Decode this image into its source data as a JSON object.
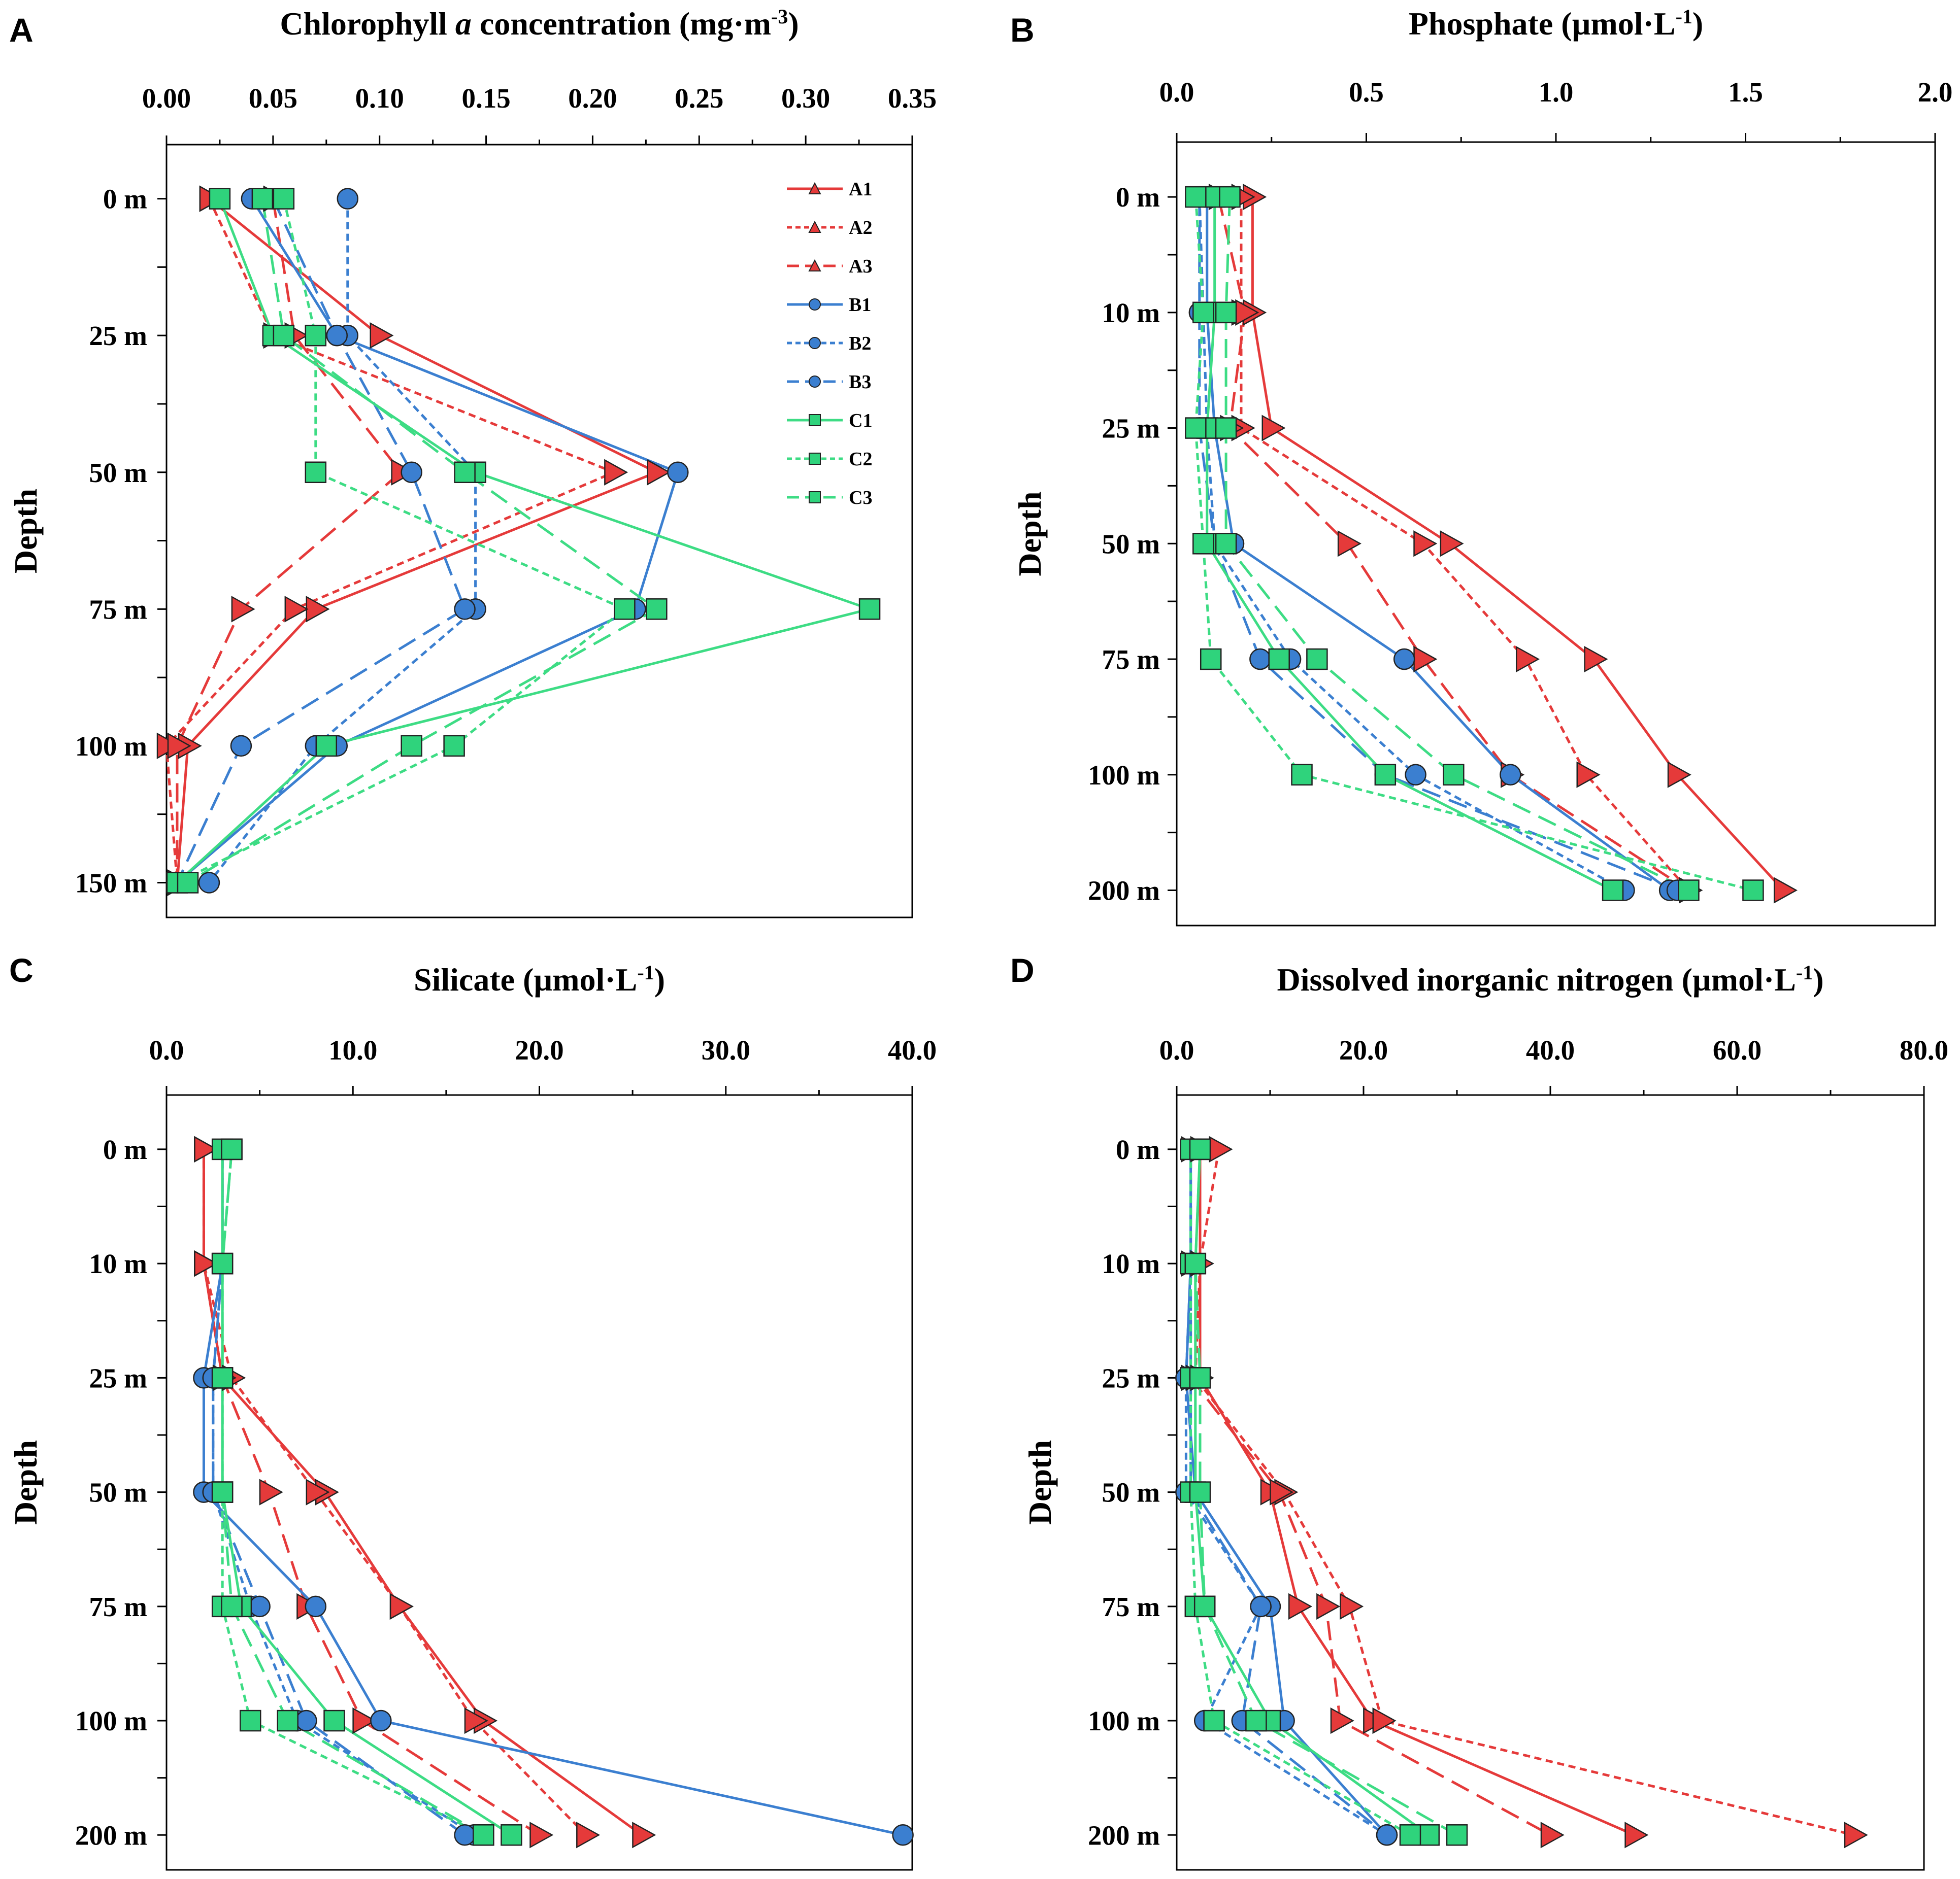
{
  "colors": {
    "A": "#e53a3a",
    "B": "#3b7fd0",
    "C": "#3ddc84",
    "Cfill": "#2fd37c",
    "marker_stroke": "#222222"
  },
  "chart_data": [
    {
      "panel": "A",
      "type": "line",
      "title_parts": [
        "Chlorophyll ",
        "a",
        " concentration (mg·m",
        "-3",
        ")"
      ],
      "xlabel": "Chlorophyll a concentration (mg·m-3)",
      "ylabel": "Depth",
      "xlim": [
        0,
        0.35
      ],
      "xticks": [
        0,
        0.05,
        0.1,
        0.15,
        0.2,
        0.25,
        0.3,
        0.35
      ],
      "xtick_labels": [
        "0.00",
        "0.05",
        "0.10",
        "0.15",
        "0.20",
        "0.25",
        "0.30",
        "0.35"
      ],
      "depths": [
        "0 m",
        "25 m",
        "50 m",
        "75 m",
        "100 m",
        "150 m"
      ],
      "legend": true,
      "series": [
        {
          "name": "A1",
          "group": "A",
          "style": "solid",
          "values": [
            0.02,
            0.1,
            0.23,
            0.07,
            0.01,
            0.005
          ]
        },
        {
          "name": "A2",
          "group": "A",
          "style": "dotted",
          "values": [
            0.02,
            0.05,
            0.21,
            0.06,
            0.0,
            0.005
          ]
        },
        {
          "name": "A3",
          "group": "A",
          "style": "dashed",
          "values": [
            0.05,
            0.06,
            0.11,
            0.035,
            0.005,
            0.005
          ]
        },
        {
          "name": "B1",
          "group": "B",
          "style": "solid",
          "values": [
            0.04,
            0.08,
            0.24,
            0.22,
            0.08,
            0.005
          ]
        },
        {
          "name": "B2",
          "group": "B",
          "style": "dotted",
          "values": [
            0.085,
            0.085,
            0.145,
            0.145,
            0.07,
            0.02
          ]
        },
        {
          "name": "B3",
          "group": "B",
          "style": "dashed",
          "values": [
            0.05,
            0.08,
            0.115,
            0.14,
            0.035,
            0.005
          ]
        },
        {
          "name": "C1",
          "group": "C",
          "style": "solid",
          "values": [
            0.025,
            0.05,
            0.145,
            0.33,
            0.075,
            0.005
          ]
        },
        {
          "name": "C2",
          "group": "C",
          "style": "dotted",
          "values": [
            0.055,
            0.07,
            0.07,
            0.215,
            0.135,
            0.005
          ]
        },
        {
          "name": "C3",
          "group": "C",
          "style": "dashed",
          "values": [
            0.045,
            0.055,
            0.14,
            0.23,
            0.115,
            0.01
          ]
        }
      ]
    },
    {
      "panel": "B",
      "type": "line",
      "title_parts": [
        "Phosphate (µmol·L",
        "-1",
        ")"
      ],
      "xlabel": "Phosphate (µmol·L-1)",
      "ylabel": "Depth",
      "xlim": [
        0,
        2.0
      ],
      "xticks": [
        0,
        0.5,
        1.0,
        1.5,
        2.0
      ],
      "xtick_labels": [
        "0.0",
        "0.5",
        "1.0",
        "1.5",
        "2.0"
      ],
      "depths": [
        "0 m",
        "10 m",
        "25 m",
        "50 m",
        "75 m",
        "100 m",
        "200 m"
      ],
      "legend": false,
      "series": [
        {
          "name": "A1",
          "group": "A",
          "style": "solid",
          "values": [
            0.2,
            0.2,
            0.25,
            0.72,
            1.1,
            1.32,
            1.6
          ]
        },
        {
          "name": "A2",
          "group": "A",
          "style": "dotted",
          "values": [
            0.17,
            0.17,
            0.17,
            0.65,
            0.92,
            1.08,
            1.35
          ]
        },
        {
          "name": "A3",
          "group": "A",
          "style": "dashed",
          "values": [
            0.11,
            0.18,
            0.14,
            0.45,
            0.65,
            0.88,
            1.35
          ]
        },
        {
          "name": "B1",
          "group": "B",
          "style": "solid",
          "values": [
            0.08,
            0.08,
            0.1,
            0.15,
            0.6,
            0.88,
            1.3
          ]
        },
        {
          "name": "B2",
          "group": "B",
          "style": "dotted",
          "values": [
            0.06,
            0.07,
            0.08,
            0.1,
            0.3,
            0.63,
            1.18
          ]
        },
        {
          "name": "B3",
          "group": "B",
          "style": "dashed",
          "values": [
            0.06,
            0.06,
            0.06,
            0.1,
            0.22,
            0.55,
            1.32
          ]
        },
        {
          "name": "C1",
          "group": "C",
          "style": "solid",
          "values": [
            0.1,
            0.1,
            0.08,
            0.08,
            0.27,
            0.55,
            1.15
          ]
        },
        {
          "name": "C2",
          "group": "C",
          "style": "dotted",
          "values": [
            0.05,
            0.07,
            0.05,
            0.07,
            0.09,
            0.33,
            1.52
          ]
        },
        {
          "name": "C3",
          "group": "C",
          "style": "dashed",
          "values": [
            0.14,
            0.13,
            0.13,
            0.13,
            0.37,
            0.73,
            1.35
          ]
        }
      ]
    },
    {
      "panel": "C",
      "type": "line",
      "title_parts": [
        "Silicate (µmol·L",
        "-1",
        ")"
      ],
      "xlabel": "Silicate (µmol·L-1)",
      "ylabel": "Depth",
      "xlim": [
        0,
        40
      ],
      "xticks": [
        0,
        10,
        20,
        30,
        40
      ],
      "xtick_labels": [
        "0.0",
        "10.0",
        "20.0",
        "30.0",
        "40.0"
      ],
      "depths": [
        "0 m",
        "10 m",
        "25 m",
        "50 m",
        "75 m",
        "100 m",
        "200 m"
      ],
      "legend": false,
      "series": [
        {
          "name": "A1",
          "group": "A",
          "style": "solid",
          "values": [
            2.0,
            2.0,
            3.0,
            8.5,
            12.5,
            17.0,
            25.5
          ]
        },
        {
          "name": "A2",
          "group": "A",
          "style": "dotted",
          "values": [
            2.0,
            2.0,
            3.5,
            8.0,
            12.5,
            16.5,
            22.5
          ]
        },
        {
          "name": "A3",
          "group": "A",
          "style": "dashed",
          "values": [
            2.0,
            2.0,
            3.0,
            5.5,
            7.5,
            10.5,
            20.0
          ]
        },
        {
          "name": "B1",
          "group": "B",
          "style": "solid",
          "values": [
            3.0,
            3.0,
            2.0,
            2.0,
            8.0,
            11.5,
            39.5
          ]
        },
        {
          "name": "B2",
          "group": "B",
          "style": "dotted",
          "values": [
            3.0,
            3.0,
            2.5,
            2.5,
            4.5,
            7.0,
            16.5
          ]
        },
        {
          "name": "B3",
          "group": "B",
          "style": "dashed",
          "values": [
            3.0,
            3.0,
            2.5,
            2.5,
            5.0,
            7.5,
            16.0
          ]
        },
        {
          "name": "C1",
          "group": "C",
          "style": "solid",
          "values": [
            3.0,
            3.0,
            3.0,
            3.0,
            4.0,
            9.0,
            18.5
          ]
        },
        {
          "name": "C2",
          "group": "C",
          "style": "dotted",
          "values": [
            3.5,
            3.0,
            3.0,
            3.0,
            3.0,
            4.5,
            17.0
          ]
        },
        {
          "name": "C3",
          "group": "C",
          "style": "dashed",
          "values": [
            3.5,
            3.0,
            3.0,
            3.0,
            3.5,
            6.5,
            17.0
          ]
        }
      ]
    },
    {
      "panel": "D",
      "type": "line",
      "title_parts": [
        "Dissolved inorganic nitrogen (µmol·L",
        "-1",
        ")"
      ],
      "xlabel": "Dissolved inorganic nitrogen (µmol·L-1)",
      "ylabel": "Depth",
      "xlim": [
        0,
        80
      ],
      "xticks": [
        0,
        20,
        40,
        60,
        80
      ],
      "xtick_labels": [
        "0.0",
        "20.0",
        "40.0",
        "60.0",
        "80.0"
      ],
      "depths": [
        "0 m",
        "10 m",
        "25 m",
        "50 m",
        "75 m",
        "100 m",
        "200 m"
      ],
      "legend": false,
      "series": [
        {
          "name": "A1",
          "group": "A",
          "style": "solid",
          "values": [
            2.5,
            2.5,
            2.5,
            10.0,
            13.0,
            21.0,
            49.0
          ]
        },
        {
          "name": "A2",
          "group": "A",
          "style": "dotted",
          "values": [
            4.5,
            2.5,
            2.0,
            11.5,
            18.5,
            22.0,
            72.5
          ]
        },
        {
          "name": "A3",
          "group": "A",
          "style": "dashed",
          "values": [
            1.5,
            1.5,
            1.5,
            11.0,
            16.0,
            17.5,
            40.0
          ]
        },
        {
          "name": "B1",
          "group": "B",
          "style": "solid",
          "values": [
            1.5,
            1.5,
            1.0,
            2.0,
            10.0,
            11.5,
            22.5
          ]
        },
        {
          "name": "B2",
          "group": "B",
          "style": "dotted",
          "values": [
            1.5,
            1.5,
            1.0,
            1.0,
            9.0,
            3.0,
            22.5
          ]
        },
        {
          "name": "B3",
          "group": "B",
          "style": "dashed",
          "values": [
            1.5,
            1.5,
            1.5,
            1.5,
            9.0,
            7.0,
            22.5
          ]
        },
        {
          "name": "C1",
          "group": "C",
          "style": "solid",
          "values": [
            2.5,
            2.0,
            2.0,
            2.0,
            3.0,
            10.0,
            27.0
          ]
        },
        {
          "name": "C2",
          "group": "C",
          "style": "dotted",
          "values": [
            1.5,
            1.5,
            1.5,
            1.5,
            2.0,
            4.0,
            25.0
          ]
        },
        {
          "name": "C3",
          "group": "C",
          "style": "dashed",
          "values": [
            2.5,
            2.0,
            2.5,
            2.5,
            3.0,
            8.5,
            30.0
          ]
        }
      ]
    }
  ]
}
